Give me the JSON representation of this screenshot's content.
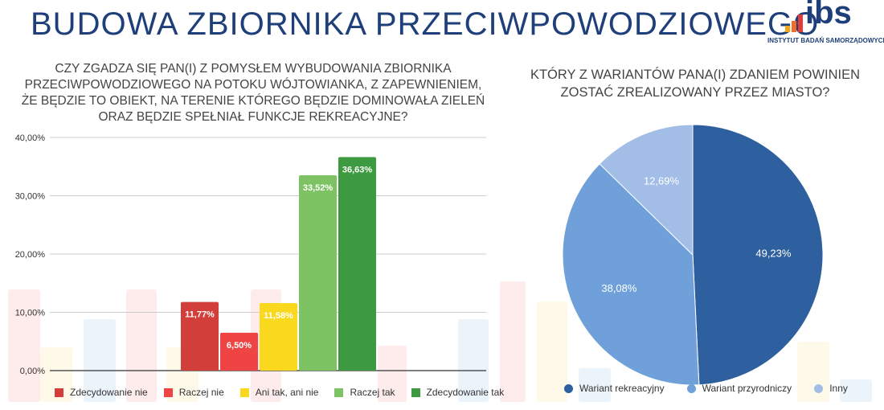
{
  "header": {
    "title": "BUDOWA ZBIORNIKA PRZECIWPOWODZIOWEGO",
    "logo_text": "ibs",
    "logo_subtitle": "INSTYTUT BADAŃ SAMORZĄDOWYCH"
  },
  "chart_data": [
    {
      "type": "bar",
      "title": "CZY ZGADZA SIĘ PAN(I) Z POMYSŁEM WYBUDOWANIA ZBIORNIKA PRZECIWPOWODZIOWEGO NA POTOKU WÓJTOWIANKA, Z ZAPEWNIENIEM, ŻE BĘDZIE TO OBIEKT, NA TERENIE KTÓREGO BĘDZIE DOMINOWAŁA ZIELEŃ ORAZ BĘDZIE SPEŁNIAŁ FUNKCJE REKREACYJNE?",
      "categories": [
        "Zdecydowanie nie",
        "Raczej nie",
        "Ani tak, ani nie",
        "Raczej tak",
        "Zdecydowanie tak"
      ],
      "values": [
        11.77,
        6.5,
        11.58,
        33.52,
        36.63
      ],
      "labels": [
        "11,77%",
        "6,50%",
        "11,58%",
        "33,52%",
        "36,63%"
      ],
      "colors": [
        "#d23f3a",
        "#ee4444",
        "#fad81e",
        "#7ec363",
        "#3e9a40"
      ],
      "yticks": [
        "0,00%",
        "10,00%",
        "20,00%",
        "30,00%",
        "40,00%"
      ],
      "ylim": [
        0,
        40
      ],
      "grid": true,
      "legend": "bottom"
    },
    {
      "type": "pie",
      "title": "KTÓRY Z WARIANTÓW PANA(I) ZDANIEM POWINIEN ZOSTAĆ ZREALIZOWANY PRZEZ MIASTO?",
      "categories": [
        "Wariant rekreacyjny",
        "Wariant przyrodniczy",
        "Inny"
      ],
      "values": [
        49.23,
        38.08,
        12.69
      ],
      "labels": [
        "49,23%",
        "38,08%",
        "12,69%"
      ],
      "colors": [
        "#2e5f9e",
        "#6fa0da",
        "#a2bde6"
      ],
      "legend": "bottom"
    }
  ]
}
